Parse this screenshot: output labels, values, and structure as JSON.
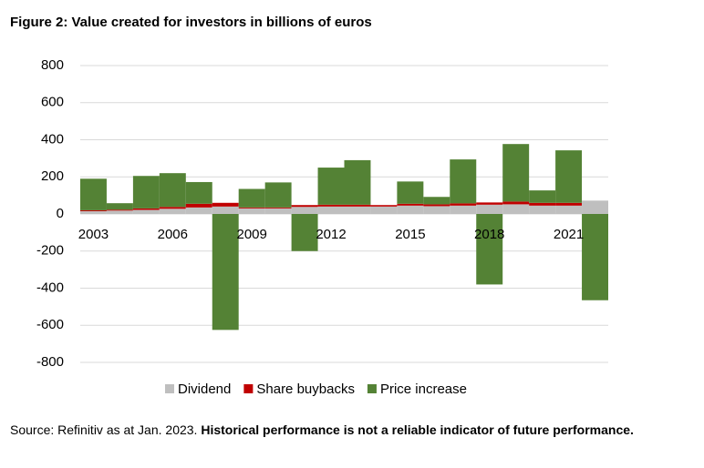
{
  "chart_data": {
    "type": "stacked-bar",
    "title": "Figure 2: Value created for investors in billions of euros",
    "source": "Source: Refinitiv as at Jan. 2023.",
    "source_note": "Historical performance is not a reliable indicator of future performance.",
    "categories": [
      "2003",
      null,
      null,
      "2006",
      null,
      null,
      "2009",
      null,
      null,
      "2012",
      null,
      null,
      "2015",
      null,
      null,
      "2018",
      null,
      null,
      "2021",
      null
    ],
    "series": [
      {
        "name": "Dividend",
        "color": "#bfbfbf",
        "values": [
          15,
          18,
          22,
          28,
          35,
          40,
          30,
          30,
          38,
          40,
          40,
          40,
          45,
          42,
          45,
          50,
          52,
          45,
          45,
          72
        ]
      },
      {
        "name": "Share buybacks",
        "color": "#c00000",
        "values": [
          5,
          5,
          8,
          10,
          20,
          20,
          5,
          5,
          10,
          10,
          10,
          8,
          10,
          10,
          12,
          12,
          15,
          15,
          15,
          0
        ]
      },
      {
        "name": "Price increase",
        "color": "#548235",
        "values": [
          170,
          35,
          175,
          182,
          117,
          -625,
          100,
          135,
          -200,
          200,
          240,
          0,
          120,
          40,
          237,
          -380,
          310,
          67,
          283,
          -465
        ]
      }
    ],
    "ylim": [
      -800,
      800
    ],
    "yticks": [
      -800,
      -600,
      -400,
      -200,
      0,
      200,
      400,
      600,
      800
    ],
    "grid": true
  }
}
